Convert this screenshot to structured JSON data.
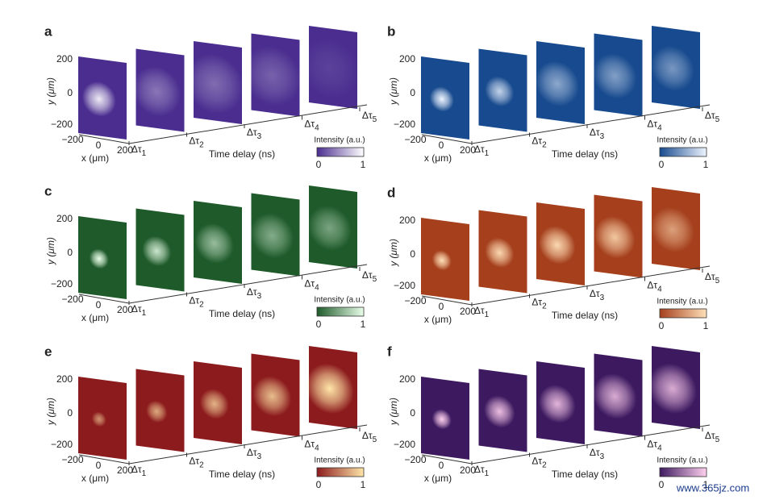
{
  "panels": [
    {
      "label": "a",
      "y_ticks": [
        "200",
        "0",
        "−200"
      ],
      "y_axis_label": "y (μm)",
      "x_ticks": [
        "−200",
        "0",
        "200"
      ],
      "x_axis_label": "x (μm)",
      "delays": [
        {
          "symbol": "Δτ",
          "index": "1"
        },
        {
          "symbol": "Δτ",
          "index": "2"
        },
        {
          "symbol": "Δτ",
          "index": "3"
        },
        {
          "symbol": "Δτ",
          "index": "4"
        },
        {
          "symbol": "Δτ",
          "index": "5"
        }
      ],
      "delay_axis_label": "Time delay (ns)",
      "colorbar_label": "Intensity (a.u.)",
      "colorbar_ticks": [
        "0",
        "1"
      ]
    },
    {
      "label": "b",
      "y_ticks": [
        "200",
        "0",
        "−200"
      ],
      "y_axis_label": "y (μm)",
      "x_ticks": [
        "−200",
        "0",
        "200"
      ],
      "x_axis_label": "x (μm)",
      "delays": [
        {
          "symbol": "Δτ",
          "index": "1"
        },
        {
          "symbol": "Δτ",
          "index": "2"
        },
        {
          "symbol": "Δτ",
          "index": "3"
        },
        {
          "symbol": "Δτ",
          "index": "4"
        },
        {
          "symbol": "Δτ",
          "index": "5"
        }
      ],
      "delay_axis_label": "Time delay (ns)",
      "colorbar_label": "Intensity (a.u.)",
      "colorbar_ticks": [
        "0",
        "1"
      ]
    },
    {
      "label": "c",
      "y_ticks": [
        "200",
        "0",
        "−200"
      ],
      "y_axis_label": "y (μm)",
      "x_ticks": [
        "−200",
        "0",
        "200"
      ],
      "x_axis_label": "x (μm)",
      "delays": [
        {
          "symbol": "Δτ",
          "index": "1"
        },
        {
          "symbol": "Δτ",
          "index": "2"
        },
        {
          "symbol": "Δτ",
          "index": "3"
        },
        {
          "symbol": "Δτ",
          "index": "4"
        },
        {
          "symbol": "Δτ",
          "index": "5"
        }
      ],
      "delay_axis_label": "Time delay (ns)",
      "colorbar_label": "Intensity (a.u.)",
      "colorbar_ticks": [
        "0",
        "1"
      ]
    },
    {
      "label": "d",
      "y_ticks": [
        "200",
        "0",
        "−200"
      ],
      "y_axis_label": "y (μm)",
      "x_ticks": [
        "−200",
        "0",
        "200"
      ],
      "x_axis_label": "x (μm)",
      "delays": [
        {
          "symbol": "Δτ",
          "index": "1"
        },
        {
          "symbol": "Δτ",
          "index": "2"
        },
        {
          "symbol": "Δτ",
          "index": "3"
        },
        {
          "symbol": "Δτ",
          "index": "4"
        },
        {
          "symbol": "Δτ",
          "index": "5"
        }
      ],
      "delay_axis_label": "Time delay (ns)",
      "colorbar_label": "Intensity (a.u.)",
      "colorbar_ticks": [
        "0",
        "1"
      ]
    },
    {
      "label": "e",
      "y_ticks": [
        "200",
        "0",
        "−200"
      ],
      "y_axis_label": "y (μm)",
      "x_ticks": [
        "−200",
        "0",
        "200"
      ],
      "x_axis_label": "x (μm)",
      "delays": [
        {
          "symbol": "Δτ",
          "index": "1"
        },
        {
          "symbol": "Δτ",
          "index": "2"
        },
        {
          "symbol": "Δτ",
          "index": "3"
        },
        {
          "symbol": "Δτ",
          "index": "4"
        },
        {
          "symbol": "Δτ",
          "index": "5"
        }
      ],
      "delay_axis_label": "Time delay (ns)",
      "colorbar_label": "Intensity (a.u.)",
      "colorbar_ticks": [
        "0",
        "1"
      ]
    },
    {
      "label": "f",
      "y_ticks": [
        "200",
        "0",
        "−200"
      ],
      "y_axis_label": "y (μm)",
      "x_ticks": [
        "−200",
        "0",
        "200"
      ],
      "x_axis_label": "x (μm)",
      "delays": [
        {
          "symbol": "Δτ",
          "index": "1"
        },
        {
          "symbol": "Δτ",
          "index": "2"
        },
        {
          "symbol": "Δτ",
          "index": "3"
        },
        {
          "symbol": "Δτ",
          "index": "4"
        },
        {
          "symbol": "Δτ",
          "index": "5"
        }
      ],
      "delay_axis_label": "Time delay (ns)",
      "colorbar_label": "Intensity (a.u.)",
      "colorbar_ticks": [
        "0",
        "1"
      ]
    }
  ],
  "watermark": "www.365jz.com"
}
